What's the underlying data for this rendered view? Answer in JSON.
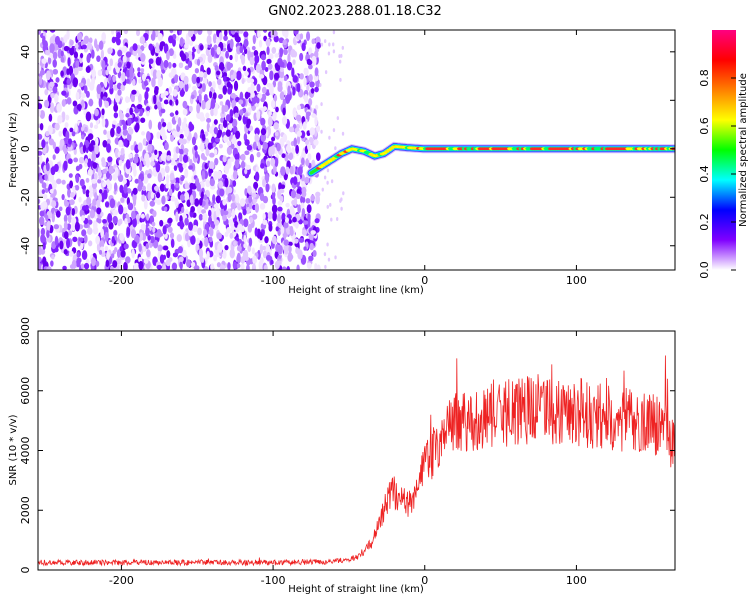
{
  "title": "GN02.2023.288.01.18.C32",
  "chart_data": [
    {
      "type": "heatmap",
      "xlabel": "Height of straight line (km)",
      "ylabel": "Frequency (Hz)",
      "xlim": [
        -255,
        165
      ],
      "ylim": [
        -50,
        49
      ],
      "xticks": [
        -200,
        -100,
        0,
        100
      ],
      "yticks": [
        -40,
        -20,
        0,
        20,
        40
      ],
      "noise_region_x": [
        -255,
        -70
      ],
      "tone_trace": [
        {
          "x": -75,
          "y": -10
        },
        {
          "x": -65,
          "y": -6
        },
        {
          "x": -55,
          "y": -2
        },
        {
          "x": -48,
          "y": 0
        },
        {
          "x": -40,
          "y": -1
        },
        {
          "x": -33,
          "y": -3
        },
        {
          "x": -27,
          "y": -2
        },
        {
          "x": -20,
          "y": 1
        },
        {
          "x": -12,
          "y": 0.5
        },
        {
          "x": 0,
          "y": 0
        },
        {
          "x": 80,
          "y": 0
        },
        {
          "x": 165,
          "y": 0
        }
      ],
      "colorbar": {
        "label": "Normalized spectral amplitude",
        "range": [
          0,
          1
        ],
        "ticks": [
          "0.0",
          "0.2",
          "0.4",
          "0.6",
          "0.8"
        ],
        "tick_values": [
          0,
          0.2,
          0.4,
          0.6,
          0.8
        ],
        "colors": [
          "#ffffff",
          "#8000ff",
          "#0000ff",
          "#00ffff",
          "#00ff00",
          "#ffff00",
          "#ff8000",
          "#ff0000",
          "#ff0080"
        ]
      }
    },
    {
      "type": "line",
      "xlabel": "Height of straight line (km)",
      "ylabel": "SNR (10 * v/v)",
      "xlim": [
        -255,
        165
      ],
      "ylim": [
        0,
        8000
      ],
      "xticks": [
        -200,
        -100,
        0,
        100
      ],
      "yticks": [
        0,
        2000,
        4000,
        6000,
        8000
      ],
      "color": "#ee2222",
      "envelope": [
        {
          "x": -255,
          "y": 250
        },
        {
          "x": -100,
          "y": 250
        },
        {
          "x": -60,
          "y": 280
        },
        {
          "x": -45,
          "y": 400
        },
        {
          "x": -35,
          "y": 900
        },
        {
          "x": -28,
          "y": 1800
        },
        {
          "x": -22,
          "y": 2700
        },
        {
          "x": -15,
          "y": 2300
        },
        {
          "x": -8,
          "y": 2200
        },
        {
          "x": 0,
          "y": 3500
        },
        {
          "x": 10,
          "y": 4300
        },
        {
          "x": 20,
          "y": 4900
        },
        {
          "x": 40,
          "y": 5200
        },
        {
          "x": 60,
          "y": 5300
        },
        {
          "x": 80,
          "y": 5400
        },
        {
          "x": 100,
          "y": 5300
        },
        {
          "x": 120,
          "y": 5100
        },
        {
          "x": 140,
          "y": 4950
        },
        {
          "x": 155,
          "y": 4900
        },
        {
          "x": 165,
          "y": 4200
        }
      ]
    }
  ]
}
